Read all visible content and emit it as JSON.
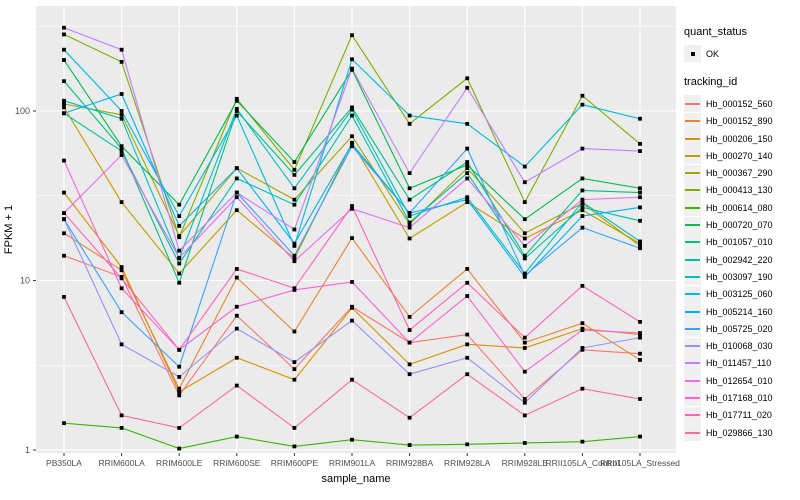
{
  "figure": {
    "y_axis_title": "FPKM + 1",
    "x_axis_title": "sample_name"
  },
  "legend": {
    "quant_status_title": "quant_status",
    "quant_status_items": [
      {
        "label": "OK",
        "marker": "black-square"
      }
    ],
    "tracking_title": "tracking_id"
  },
  "colors": {
    "panel_background": "#ebebeb",
    "gridline": "#ffffff",
    "tick_label": "#4d4d4d",
    "axis_title": "#000000",
    "point": "#000000",
    "legend_key_background": "#f0f0f0"
  },
  "chart_data": {
    "type": "line",
    "title": "",
    "xlabel": "sample_name",
    "ylabel": "FPKM + 1",
    "y_scale": "log10",
    "ylim": [
      1,
      417
    ],
    "yticks": [
      1,
      10,
      100
    ],
    "ytick_labels": [
      "1",
      "10",
      "100"
    ],
    "minor_gridlines": [
      3.162,
      31.62,
      316.2
    ],
    "grid": true,
    "legend_position": "right",
    "point_shape": "filled-black-square",
    "categories": [
      "PB350LA",
      "RRIM600LA",
      "RRIM600LE",
      "RRIM600SE",
      "RRIM600PE",
      "RRIM901LA",
      "RRIM928BA",
      "RRIM928LA",
      "RRIM928LE",
      "RRII105LA_Control",
      "RRII105LA_Stressed"
    ],
    "series": [
      {
        "name": "Hb_000152_560",
        "color": "#F8766D",
        "values": [
          14,
          10.5,
          2.1,
          6.2,
          3.0,
          7.0,
          4.3,
          4.8,
          2.0,
          3.9,
          3.7
        ]
      },
      {
        "name": "Hb_000152_890",
        "color": "#EA8331",
        "values": [
          19,
          11.5,
          2.3,
          10.4,
          5.0,
          17.8,
          6.1,
          11.7,
          4.3,
          5.6,
          3.4
        ]
      },
      {
        "name": "Hb_000206_150",
        "color": "#D89000",
        "values": [
          33,
          12,
          2.2,
          3.5,
          2.6,
          6.9,
          3.2,
          4.2,
          4.0,
          5.2,
          4.8
        ]
      },
      {
        "name": "Hb_000270_140",
        "color": "#C09B00",
        "values": [
          105,
          29,
          11,
          26,
          13.5,
          65,
          17.7,
          29,
          17.7,
          26,
          16.5
        ]
      },
      {
        "name": "Hb_000367_290",
        "color": "#A3A500",
        "values": [
          110,
          95,
          18.3,
          46,
          30,
          71,
          21.5,
          46,
          19,
          28.5,
          16
        ]
      },
      {
        "name": "Hb_000413_130",
        "color": "#7CAE00",
        "values": [
          283,
          195,
          18,
          118,
          45,
          280,
          84,
          156,
          29,
          123,
          64
        ]
      },
      {
        "name": "Hb_000614_080",
        "color": "#39B600",
        "values": [
          1.44,
          1.35,
          1.02,
          1.2,
          1.05,
          1.15,
          1.07,
          1.08,
          1.1,
          1.12,
          1.2
        ]
      },
      {
        "name": "Hb_000720_070",
        "color": "#00BB4E",
        "values": [
          200,
          62,
          28,
          115,
          50,
          175,
          35,
          48,
          23,
          40,
          35
        ]
      },
      {
        "name": "Hb_001057_010",
        "color": "#00BF7D",
        "values": [
          150,
          60,
          9.7,
          100,
          42,
          105,
          30,
          50,
          14,
          34,
          33
        ]
      },
      {
        "name": "Hb_002942_220",
        "color": "#00C1A3",
        "values": [
          97,
          58,
          12.6,
          40,
          28,
          94,
          22,
          43,
          13.5,
          27,
          22.5
        ]
      },
      {
        "name": "Hb_003097_190",
        "color": "#00BFC4",
        "values": [
          115,
          90,
          13.5,
          103,
          35,
          102,
          24,
          31,
          11,
          29,
          17
        ]
      },
      {
        "name": "Hb_003125_060",
        "color": "#00BAE0",
        "values": [
          230,
          100,
          24,
          94,
          16,
          202,
          94,
          84,
          47,
          109,
          90
        ]
      },
      {
        "name": "Hb_005214_160",
        "color": "#00B0F6",
        "values": [
          97,
          126,
          21,
          46,
          16.5,
          64,
          25,
          30,
          10.5,
          24,
          27
        ]
      },
      {
        "name": "Hb_005725_020",
        "color": "#35A2FF",
        "values": [
          23,
          6.5,
          3.1,
          33,
          14,
          62,
          25,
          60,
          10.7,
          20.5,
          15.5
        ]
      },
      {
        "name": "Hb_010068_030",
        "color": "#9590FF",
        "values": [
          23,
          4.2,
          2.7,
          5.2,
          3.3,
          5.8,
          2.8,
          3.5,
          1.9,
          4.0,
          4.6
        ]
      },
      {
        "name": "Hb_011457_110",
        "color": "#C77CFF",
        "values": [
          310,
          230,
          15,
          33,
          20,
          178,
          43,
          137,
          38,
          60,
          58
        ]
      },
      {
        "name": "Hb_012654_010",
        "color": "#E76BF3",
        "values": [
          25,
          55,
          13.6,
          31,
          13,
          26.5,
          20.5,
          40,
          16,
          30,
          31
        ]
      },
      {
        "name": "Hb_017168_010",
        "color": "#FA62DB",
        "values": [
          51,
          9,
          3.9,
          7.0,
          8.8,
          9.8,
          4.3,
          8.1,
          2.9,
          5.1,
          4.9
        ]
      },
      {
        "name": "Hb_017711_020",
        "color": "#FF62BC",
        "values": [
          25,
          10.3,
          3.9,
          11.7,
          9.0,
          27.5,
          5.1,
          9.7,
          4.6,
          9.3,
          5.7
        ]
      },
      {
        "name": "Hb_029866_130",
        "color": "#FF6A98",
        "values": [
          8,
          1.6,
          1.35,
          2.4,
          1.35,
          2.6,
          1.55,
          2.8,
          1.6,
          2.3,
          2.0
        ]
      }
    ]
  }
}
